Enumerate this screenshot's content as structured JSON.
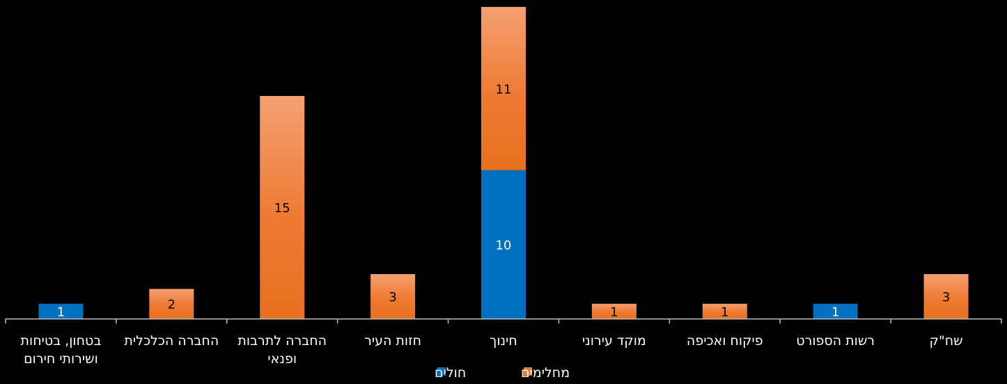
{
  "chart_data": {
    "type": "bar",
    "stacked": true,
    "categories": [
      [
        "בטחון, בטיחות",
        "ושירותי חירום"
      ],
      [
        "החברה הכלכלית"
      ],
      [
        "החברה לתרבות",
        "ופנאי"
      ],
      [
        "חזות העיר"
      ],
      [
        "חינוך"
      ],
      [
        "מוקד עירוני"
      ],
      [
        "פיקוח ואכיפה"
      ],
      [
        "רשות הספורט"
      ],
      [
        "שח\"ק"
      ]
    ],
    "series": [
      {
        "name": "חולים",
        "color": "#0070C0",
        "values": [
          1,
          0,
          0,
          0,
          10,
          0,
          0,
          1,
          0
        ]
      },
      {
        "name": "מחלימים",
        "color": "#ED7D31",
        "values": [
          0,
          2,
          15,
          3,
          11,
          1,
          1,
          0,
          3
        ]
      }
    ],
    "ylim": [
      0,
      21
    ],
    "grid": false,
    "legend_position": "bottom",
    "data_labels": true,
    "title": "",
    "xlabel": "",
    "ylabel": ""
  }
}
